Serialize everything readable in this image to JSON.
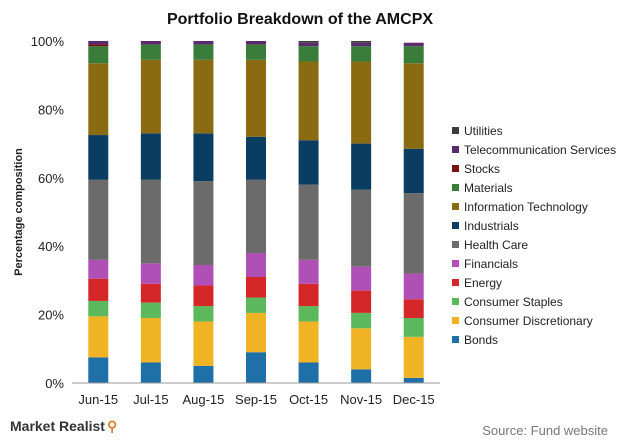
{
  "footer": {
    "brand": "Market Realist",
    "brand_icon": "magnifier-icon",
    "source": "Source: Fund website"
  },
  "chart_data": {
    "type": "bar",
    "stacked": true,
    "title": "Portfolio Breakdown of the AMCPX",
    "xlabel": "",
    "ylabel": "Percentage composition",
    "ylim": [
      0,
      100
    ],
    "yticks": [
      "0%",
      "20%",
      "40%",
      "60%",
      "80%",
      "100%"
    ],
    "grid": false,
    "legend_position": "right",
    "categories": [
      "Jun-15",
      "Jul-15",
      "Aug-15",
      "Sep-15",
      "Oct-15",
      "Nov-15",
      "Dec-15"
    ],
    "series": [
      {
        "name": "Bonds",
        "color": "#1f6fa8",
        "values": [
          7.5,
          6.0,
          5.0,
          9.0,
          6.0,
          4.0,
          1.5
        ]
      },
      {
        "name": "Consumer Discretionary",
        "color": "#f0b323",
        "values": [
          12.0,
          13.0,
          13.0,
          11.5,
          12.0,
          12.0,
          12.0
        ]
      },
      {
        "name": "Consumer Staples",
        "color": "#5cb85c",
        "values": [
          4.5,
          4.5,
          4.5,
          4.5,
          4.5,
          4.5,
          5.5
        ]
      },
      {
        "name": "Energy",
        "color": "#d62728",
        "values": [
          6.5,
          5.5,
          6.0,
          6.0,
          6.5,
          6.5,
          5.5
        ]
      },
      {
        "name": "Financials",
        "color": "#b04fb5",
        "values": [
          5.5,
          6.0,
          6.0,
          7.0,
          7.0,
          7.0,
          7.5
        ]
      },
      {
        "name": "Health Care",
        "color": "#6b6b6b",
        "values": [
          23.5,
          24.5,
          24.5,
          21.5,
          22.0,
          22.5,
          23.5
        ]
      },
      {
        "name": "Industrials",
        "color": "#0b3d62",
        "values": [
          13.0,
          13.5,
          14.0,
          12.5,
          13.0,
          13.5,
          13.0
        ]
      },
      {
        "name": "Information Technology",
        "color": "#8b6b12",
        "values": [
          21.0,
          21.5,
          21.5,
          22.5,
          23.0,
          24.0,
          25.0
        ]
      },
      {
        "name": "Materials",
        "color": "#3a7d3a",
        "values": [
          5.0,
          4.5,
          4.5,
          4.5,
          4.5,
          4.5,
          5.0
        ]
      },
      {
        "name": "Stocks",
        "color": "#7a1010",
        "values": [
          0.5,
          0.0,
          0.0,
          0.0,
          0.0,
          0.0,
          0.0
        ]
      },
      {
        "name": "Telecommunication Services",
        "color": "#5c2a6e",
        "values": [
          1.0,
          1.0,
          1.0,
          1.0,
          1.0,
          1.0,
          1.0
        ]
      },
      {
        "name": "Utilities",
        "color": "#3b3b3b",
        "values": [
          0.0,
          0.0,
          0.0,
          0.0,
          0.5,
          0.5,
          0.0
        ]
      }
    ]
  }
}
